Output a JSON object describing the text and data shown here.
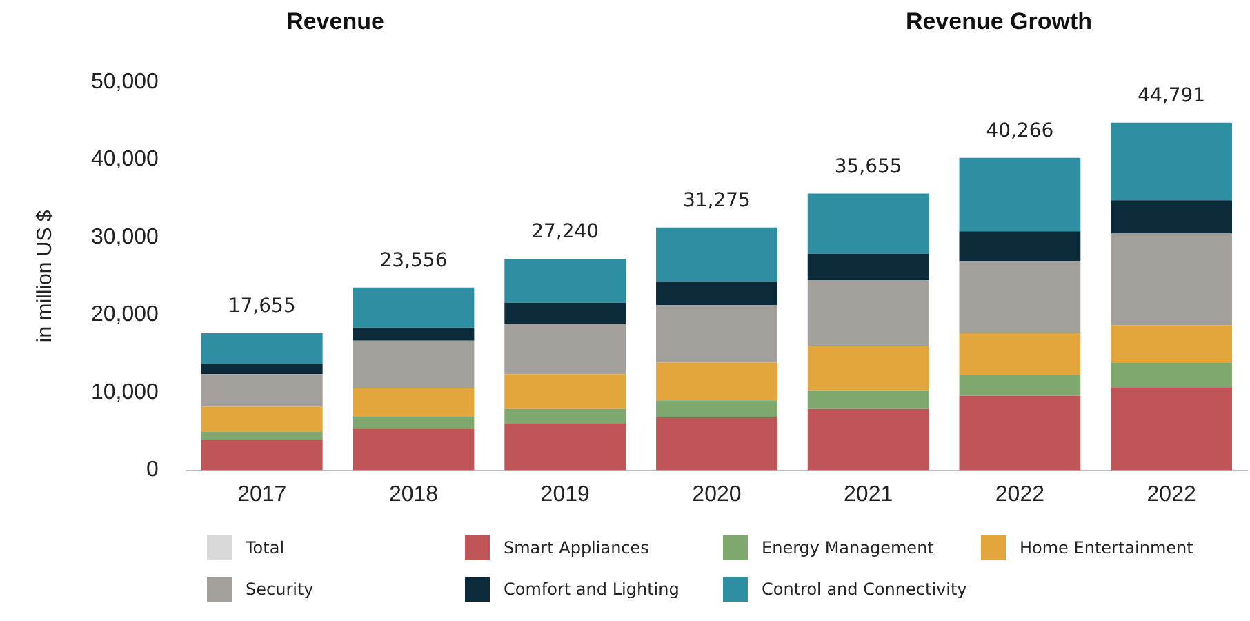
{
  "chart_data": {
    "type": "bar",
    "title": "Revenue",
    "subtitle": "Revenue Growth",
    "ylabel": "in million US $",
    "stacked": true,
    "legend": "bottom",
    "grid": false,
    "categories": [
      "2017",
      "2018",
      "2019",
      "2020",
      "2021",
      "2022",
      "2022"
    ],
    "ylim": [
      0,
      50000
    ],
    "yticks": [
      {
        "value": 0,
        "label": "0"
      },
      {
        "value": 10000,
        "label": "10,000"
      },
      {
        "value": 20000,
        "label": "20,000"
      },
      {
        "value": 30000,
        "label": "30,000"
      },
      {
        "value": 40000,
        "label": "40,000"
      },
      {
        "value": 50000,
        "label": "50,000"
      }
    ],
    "totals": [
      "17,655",
      "23,556",
      "27,240",
      "31,275",
      "35,655",
      "40,266",
      "44,791"
    ],
    "series": [
      {
        "name": "Total",
        "color": "#d9d9d9",
        "values": [
          null,
          null,
          null,
          null,
          null,
          null,
          null
        ]
      },
      {
        "name": "Smart Appliances",
        "color": "#c05558",
        "values": [
          3900,
          5300,
          6000,
          6800,
          7900,
          9600,
          10700
        ]
      },
      {
        "name": "Energy Management",
        "color": "#7fa86e",
        "values": [
          1100,
          1600,
          1900,
          2200,
          2400,
          2700,
          3200
        ]
      },
      {
        "name": "Home Entertainment",
        "color": "#e2a63c",
        "values": [
          3200,
          3700,
          4500,
          4900,
          5700,
          5400,
          4800
        ]
      },
      {
        "name": "Security",
        "color": "#a39f9a",
        "values": [
          4200,
          6100,
          6500,
          7400,
          8500,
          9300,
          11800
        ]
      },
      {
        "name": "Comfort and Lighting",
        "color": "#0b2a3a",
        "values": [
          1300,
          1700,
          2700,
          3000,
          3400,
          3800,
          4300
        ]
      },
      {
        "name": "Control and Connectivity",
        "color": "#2e8fa3",
        "values": [
          3955,
          5156,
          5640,
          6975,
          7755,
          9466,
          9991
        ]
      }
    ]
  }
}
